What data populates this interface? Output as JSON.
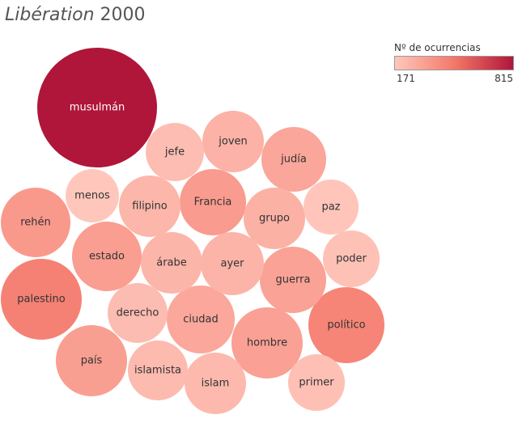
{
  "title": {
    "publication": "Libération",
    "year": "2000"
  },
  "chart_data": {
    "type": "bubble",
    "title": "Libération 2000",
    "size_and_color_measure": "Nº de ocurrencias",
    "color_range": [
      171,
      815
    ],
    "colors": {
      "low": "#ffc7bc",
      "mid": "#f4786a",
      "high": "#b0163a"
    },
    "legend": {
      "title": "Nº de ocurrencias",
      "min_label": "171",
      "max_label": "815",
      "placement": "top-right"
    },
    "items": [
      {
        "label": "musulmán",
        "value": 815
      },
      {
        "label": "palestino",
        "value": 455
      },
      {
        "label": "político",
        "value": 440
      },
      {
        "label": "rehén",
        "value": 360
      },
      {
        "label": "Francia",
        "value": 350
      },
      {
        "label": "estado",
        "value": 340
      },
      {
        "label": "guerra",
        "value": 320
      },
      {
        "label": "hombre",
        "value": 330
      },
      {
        "label": "país",
        "value": 335
      },
      {
        "label": "judía",
        "value": 305
      },
      {
        "label": "ciudad",
        "value": 300
      },
      {
        "label": "grupo",
        "value": 260
      },
      {
        "label": "joven",
        "value": 255
      },
      {
        "label": "ayer",
        "value": 250
      },
      {
        "label": "árabe",
        "value": 245
      },
      {
        "label": "filipino",
        "value": 240
      },
      {
        "label": "islam",
        "value": 230
      },
      {
        "label": "islamista",
        "value": 225
      },
      {
        "label": "derecho",
        "value": 215
      },
      {
        "label": "jefe",
        "value": 210
      },
      {
        "label": "primer",
        "value": 200
      },
      {
        "label": "poder",
        "value": 195
      },
      {
        "label": "paz",
        "value": 180
      },
      {
        "label": "menos",
        "value": 171
      }
    ]
  }
}
